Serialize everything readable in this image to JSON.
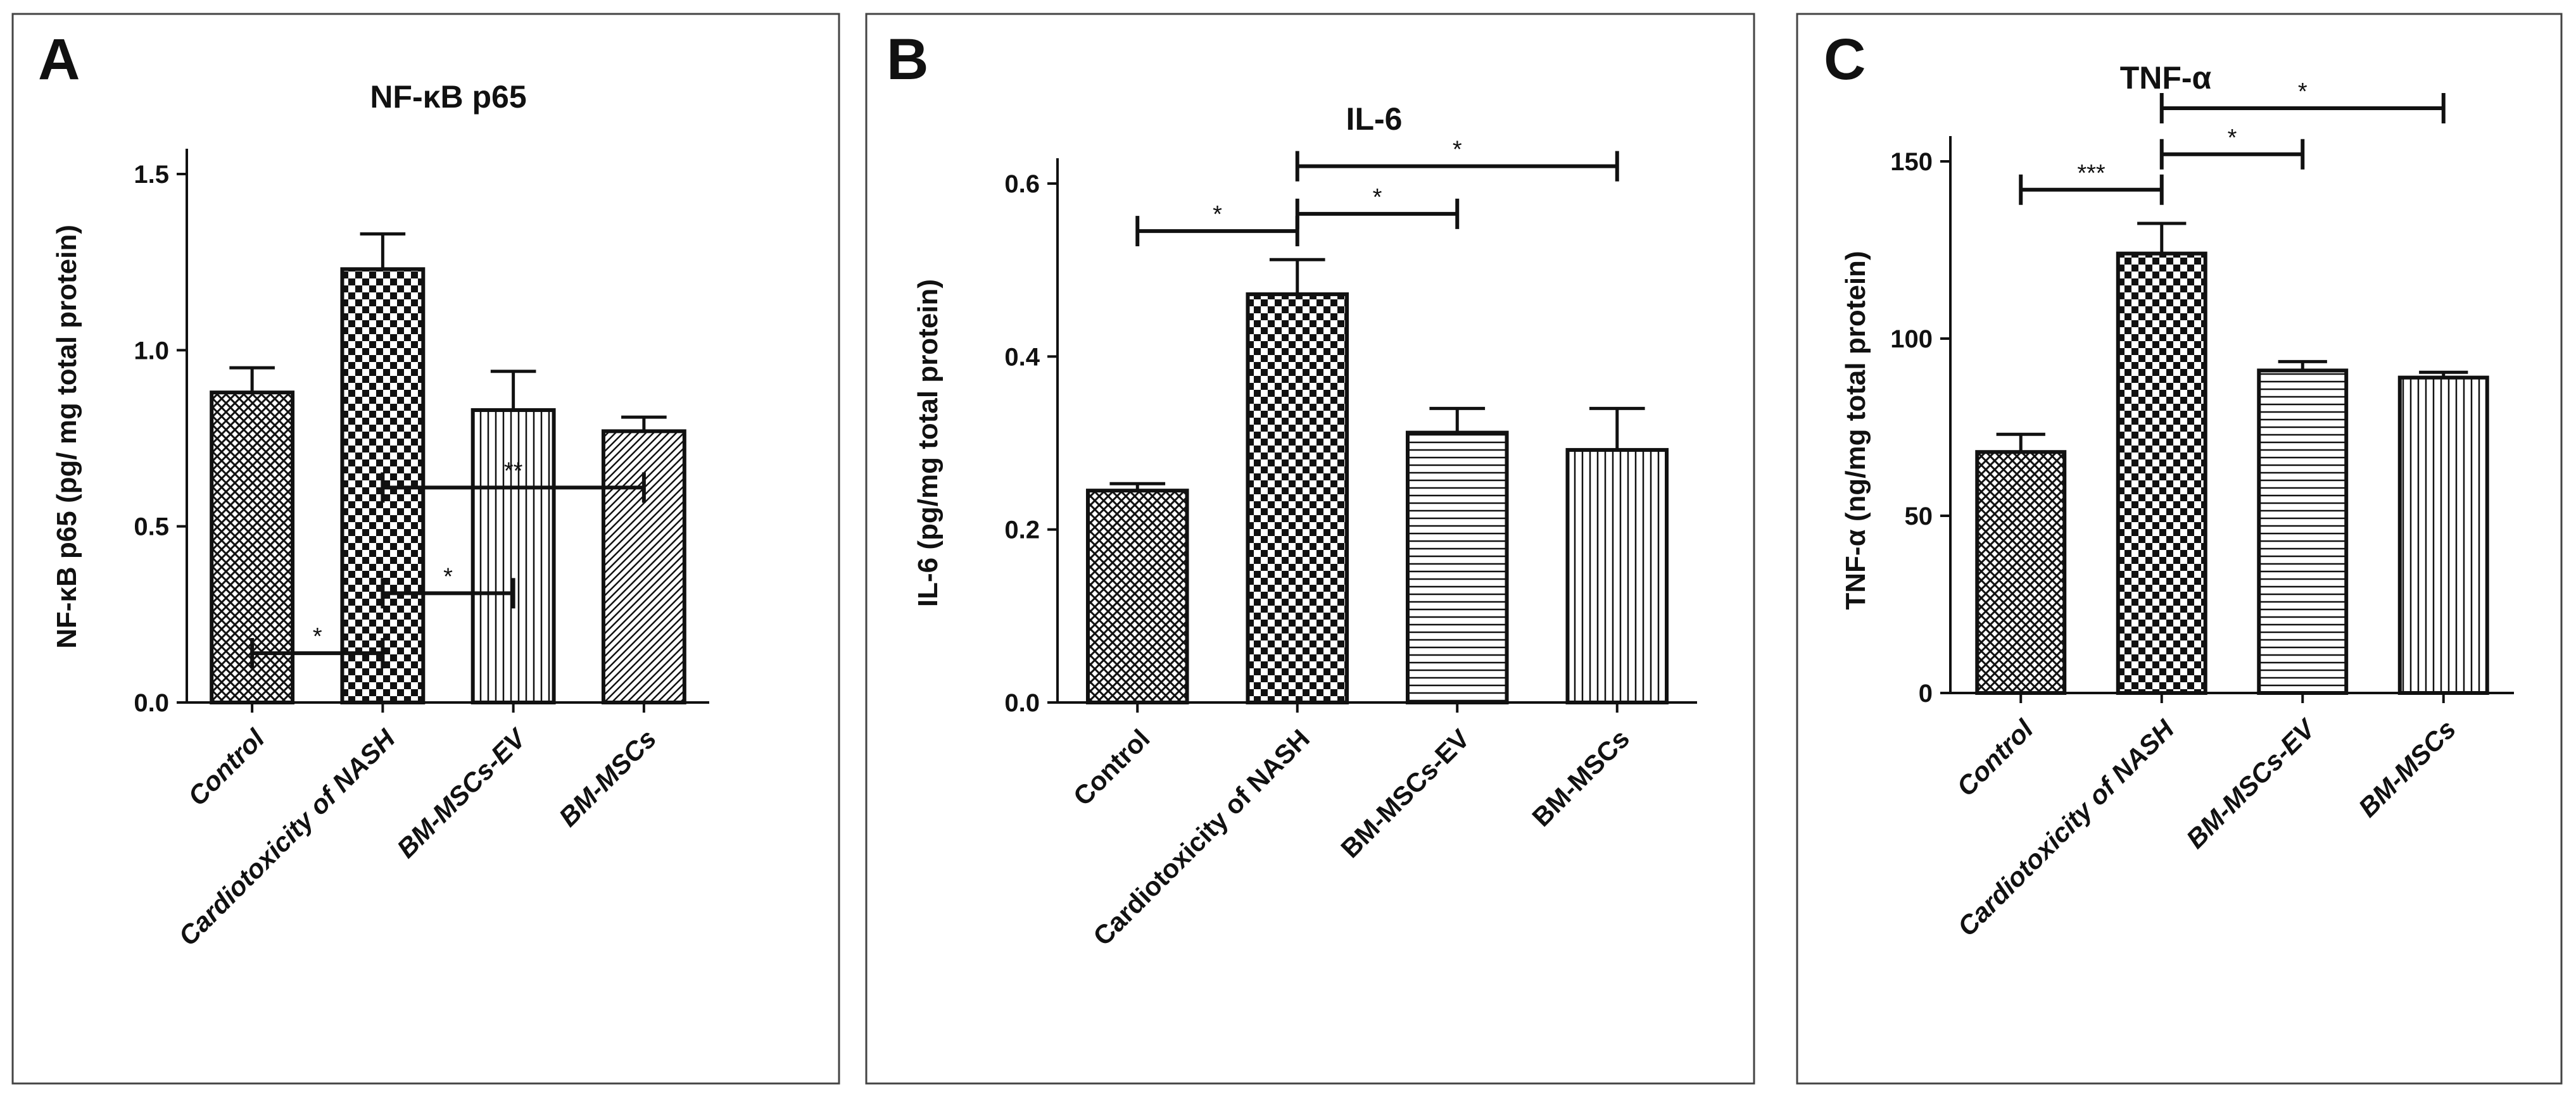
{
  "chart_data": [
    {
      "panel_letter": "A",
      "type": "bar",
      "title": "NF-κB p65",
      "ylabel": "NF-κB p65 (pg/ mg total protein)",
      "xlabel": "",
      "ylim": [
        0,
        1.5
      ],
      "yticks": [
        "0.0",
        "0.5",
        "1.0",
        "1.5"
      ],
      "ytick_values": [
        0,
        0.5,
        1.0,
        1.5
      ],
      "italic_categories": true,
      "categories": [
        "Control",
        "Cardiotoxicity of NASH",
        "BM-MSCs-EV",
        "BM-MSCs"
      ],
      "values": [
        0.88,
        1.23,
        0.83,
        0.77
      ],
      "errors": [
        0.07,
        0.1,
        0.11,
        0.04
      ],
      "patterns": [
        "crosshatch",
        "checker",
        "vertical",
        "diagonal"
      ],
      "significance": [
        {
          "from": 0,
          "to": 1,
          "label": "*",
          "level": 0.14
        },
        {
          "from": 1,
          "to": 2,
          "label": "*",
          "level": 0.31
        },
        {
          "from": 1,
          "to": 3,
          "label": "**",
          "level": 0.61
        }
      ]
    },
    {
      "panel_letter": "B",
      "type": "bar",
      "title": "IL-6",
      "ylabel": "IL-6 (pg/mg total protein)",
      "xlabel": "",
      "ylim": [
        0,
        0.6
      ],
      "yticks": [
        "0.0",
        "0.2",
        "0.4",
        "0.6"
      ],
      "ytick_values": [
        0,
        0.2,
        0.4,
        0.6
      ],
      "italic_categories": false,
      "categories": [
        "Control",
        "Cardiotoxicity of NASH",
        "BM-MSCs-EV",
        "BM-MSCs"
      ],
      "values": [
        0.245,
        0.472,
        0.312,
        0.292
      ],
      "errors": [
        0.008,
        0.04,
        0.028,
        0.048
      ],
      "patterns": [
        "crosshatch",
        "checker",
        "horizontal",
        "vertical"
      ],
      "significance": [
        {
          "from": 0,
          "to": 1,
          "label": "*",
          "level": 0.545
        },
        {
          "from": 1,
          "to": 2,
          "label": "*",
          "level": 0.565
        },
        {
          "from": 1,
          "to": 3,
          "label": "*",
          "level": 0.62
        }
      ]
    },
    {
      "panel_letter": "C",
      "type": "bar",
      "title": "TNF-α",
      "ylabel": "TNF-α (ng/mg total protein)",
      "xlabel": "",
      "ylim": [
        0,
        150
      ],
      "yticks": [
        "0",
        "50",
        "100",
        "150"
      ],
      "ytick_values": [
        0,
        50,
        100,
        150
      ],
      "italic_categories": true,
      "categories": [
        "Control",
        "Cardiotoxicity of NASH",
        "BM-MSCs-EV",
        "BM-MSCs"
      ],
      "values": [
        68,
        124,
        91,
        89
      ],
      "errors": [
        5,
        8.5,
        2.5,
        1.5
      ],
      "patterns": [
        "crosshatch",
        "checker",
        "horizontal",
        "vertical"
      ],
      "significance": [
        {
          "from": 0,
          "to": 1,
          "label": "***",
          "level": 142
        },
        {
          "from": 1,
          "to": 2,
          "label": "*",
          "level": 152
        },
        {
          "from": 1,
          "to": 3,
          "label": "*",
          "level": 165
        }
      ]
    }
  ]
}
